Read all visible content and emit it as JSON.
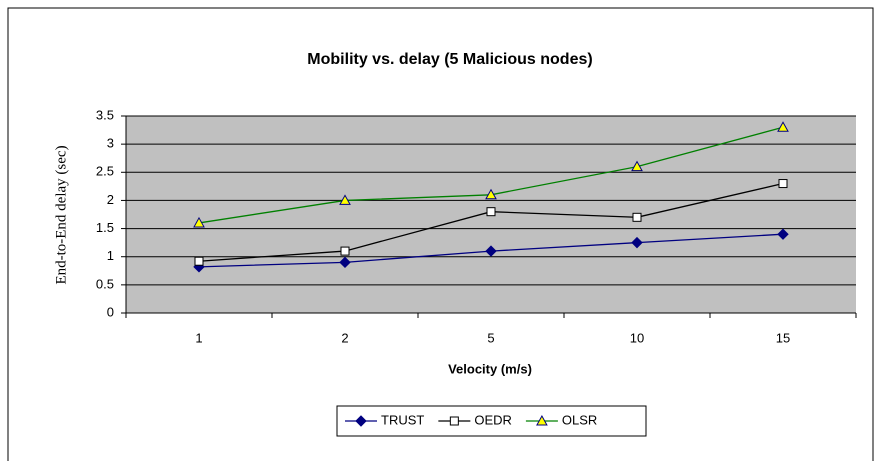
{
  "chart_data": {
    "type": "line",
    "title": "Mobility vs. delay (5 Malicious nodes)",
    "xlabel": "Velocity (m/s)",
    "ylabel": "End-to-End delay (sec)",
    "categories": [
      "1",
      "2",
      "5",
      "10",
      "15"
    ],
    "series": [
      {
        "name": "TRUST",
        "color": "#000080",
        "marker": "diamond",
        "values": [
          0.82,
          0.9,
          1.1,
          1.25,
          1.4
        ]
      },
      {
        "name": "OEDR",
        "color": "#000000",
        "marker": "square",
        "values": [
          0.92,
          1.1,
          1.8,
          1.7,
          2.3
        ]
      },
      {
        "name": "OLSR",
        "color": "#008000",
        "marker": "triangle",
        "values": [
          1.6,
          2.0,
          2.1,
          2.6,
          3.3
        ]
      }
    ],
    "ylim": [
      0,
      3.5
    ],
    "yticks": [
      0,
      0.5,
      1,
      1.5,
      2,
      2.5,
      3,
      3.5
    ],
    "grid": true,
    "legend": "bottom"
  }
}
